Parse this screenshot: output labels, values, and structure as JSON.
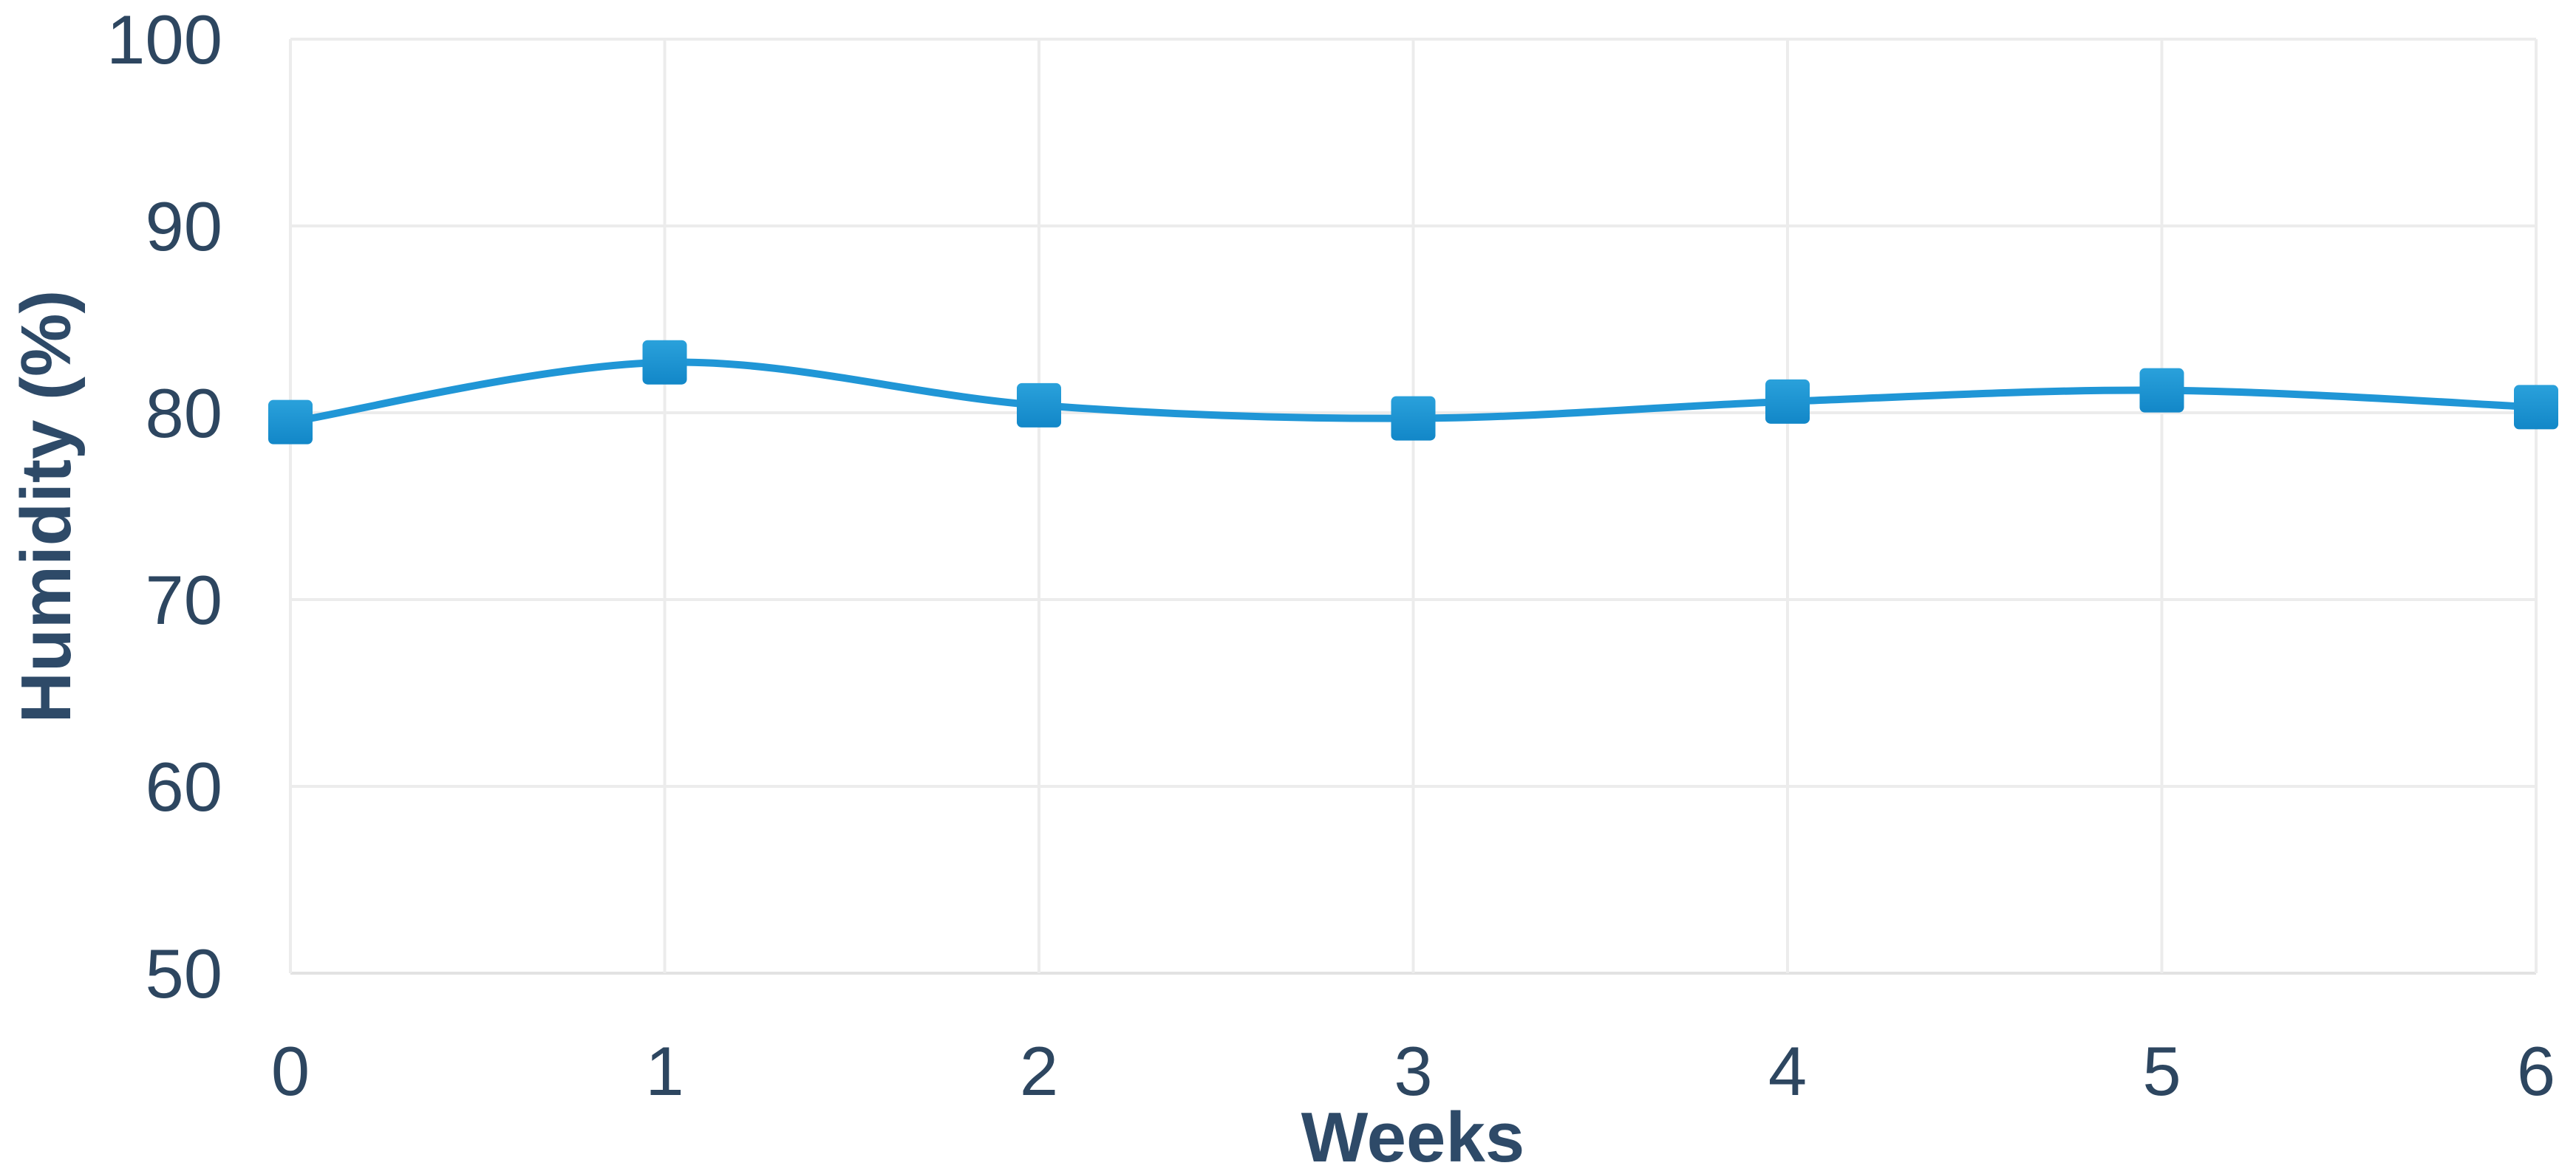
{
  "chart_data": {
    "type": "line",
    "title": "",
    "xlabel": "Weeks",
    "ylabel": "Humidity (%)",
    "x": [
      0,
      1,
      2,
      3,
      4,
      5,
      6
    ],
    "xtick_labels": [
      "0",
      "1",
      "2",
      "3",
      "4",
      "5",
      "6"
    ],
    "ytick_values": [
      50,
      60,
      70,
      80,
      90,
      100
    ],
    "ytick_labels": [
      "50",
      "60",
      "70",
      "80",
      "90",
      "100"
    ],
    "series": [
      {
        "name": "Humidity",
        "marker": "square",
        "smoothed": true,
        "values": [
          79.5,
          82.7,
          80.4,
          79.7,
          80.6,
          81.2,
          80.3
        ]
      }
    ],
    "xlim": [
      0,
      6
    ],
    "ylim": [
      50,
      100
    ],
    "grid": "both",
    "legend": "none",
    "colors": {
      "line": "#2096d6",
      "marker_top": "#2aa1db",
      "marker_bottom": "#1287c8",
      "grid": "#ececec",
      "axis_line": "#e2e2e2",
      "tick_text": "#2d4660",
      "title_text": "#2e4a68",
      "background": "#ffffff"
    }
  }
}
